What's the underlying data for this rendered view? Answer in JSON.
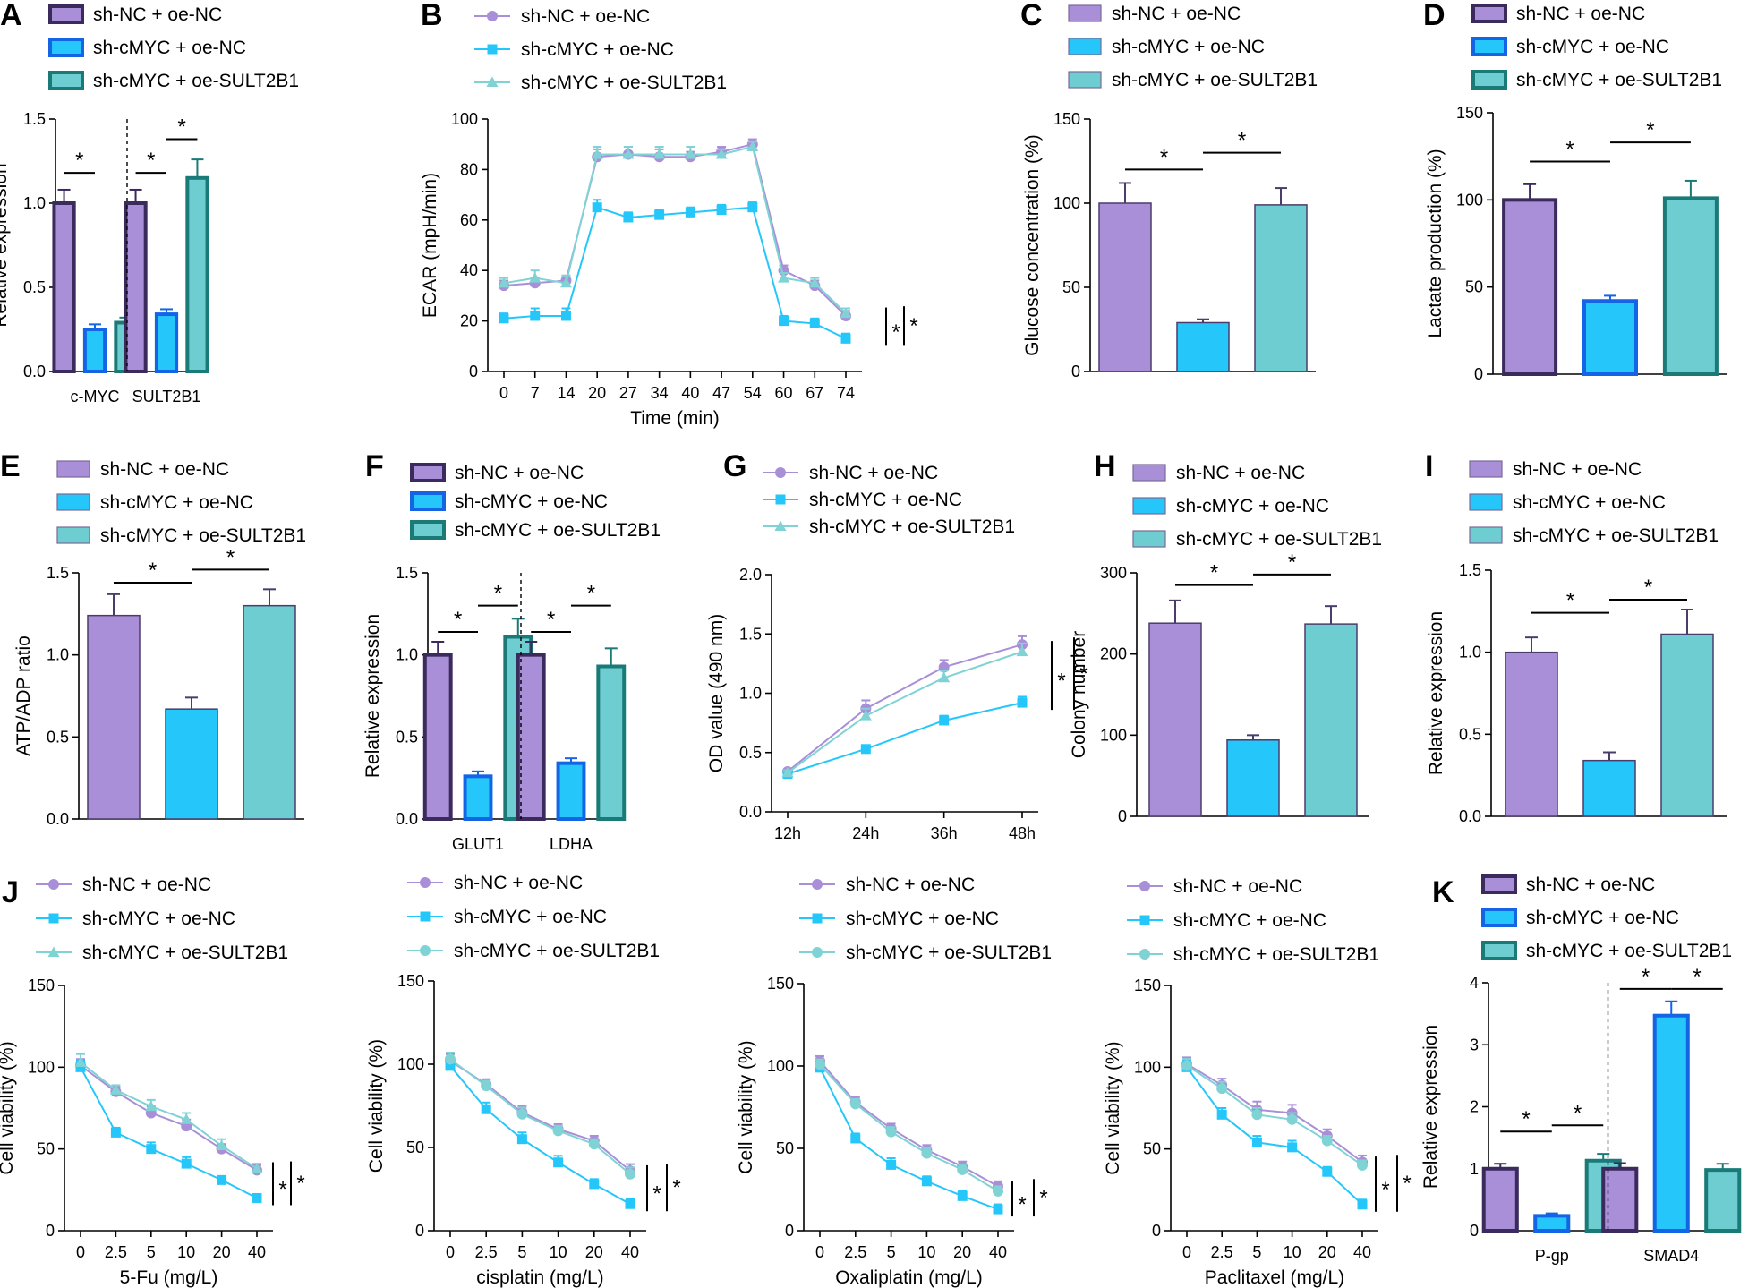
{
  "colors": {
    "purple": "#a98fd8",
    "purple_edge": "#3b2a5c",
    "cyan": "#25c7fb",
    "cyan_edge": "#1464e6",
    "teal": "#6dcdd0",
    "teal_edge": "#1a7a78",
    "line_purple": "#a98fd8",
    "line_cyan": "#25c7fb",
    "line_teal": "#7fd3d4"
  },
  "groups": [
    "sh-NC + oe-NC",
    "sh-cMYC + oe-NC",
    "sh-cMYC + oe-SULT2B1"
  ],
  "chart_data": [
    {
      "id": "A",
      "type": "bar",
      "style": "outlined",
      "letter": "A",
      "categories": [
        "c-MYC",
        "SULT2B1"
      ],
      "ylabel": "Relative expression",
      "ylim": [
        0,
        1.5
      ],
      "yticks": [
        0,
        0.5,
        1.0,
        1.5
      ],
      "divider": true,
      "series": [
        {
          "name": "sh-NC + oe-NC",
          "values": [
            1.0,
            1.0
          ],
          "errors": [
            0.08,
            0.08
          ]
        },
        {
          "name": "sh-cMYC + oe-NC",
          "values": [
            0.25,
            0.34
          ],
          "errors": [
            0.03,
            0.03
          ]
        },
        {
          "name": "sh-cMYC + oe-SULT2B1",
          "values": [
            0.29,
            1.15
          ],
          "errors": [
            0.03,
            0.11
          ]
        }
      ],
      "significance": [
        {
          "cat": 0,
          "a": 0,
          "b": 1,
          "y": 1.18,
          "label": "*"
        },
        {
          "cat": 1,
          "a": 0,
          "b": 1,
          "y": 1.18,
          "label": "*"
        },
        {
          "cat": 1,
          "a": 1,
          "b": 2,
          "y": 1.38,
          "label": "*"
        }
      ]
    },
    {
      "id": "B",
      "type": "line",
      "letter": "B",
      "xlabel": "Time (min)",
      "ylabel": "ECAR (mpH/min)",
      "x": [
        "0",
        "7",
        "14",
        "20",
        "27",
        "34",
        "40",
        "47",
        "54",
        "60",
        "67",
        "74"
      ],
      "ylim": [
        0,
        100
      ],
      "yticks": [
        0,
        20,
        40,
        60,
        80,
        100
      ],
      "markers": [
        "circle",
        "square",
        "triangle"
      ],
      "series": [
        {
          "name": "sh-NC + oe-NC",
          "values": [
            34,
            35,
            36,
            85,
            86,
            85,
            85,
            87,
            90,
            40,
            34,
            22
          ],
          "errors": [
            2,
            2,
            2,
            3,
            3,
            3,
            2,
            2,
            2,
            2,
            2,
            2
          ]
        },
        {
          "name": "sh-cMYC + oe-NC",
          "values": [
            21,
            22,
            22,
            65,
            61,
            62,
            63,
            64,
            65,
            20,
            19,
            13
          ],
          "errors": [
            2,
            3,
            3,
            3,
            2,
            2,
            2,
            2,
            2,
            2,
            2,
            2
          ]
        },
        {
          "name": "sh-cMYC + oe-SULT2B1",
          "values": [
            35,
            37,
            35,
            86,
            86,
            86,
            86,
            86,
            89,
            37,
            35,
            23
          ],
          "errors": [
            2,
            3,
            3,
            3,
            3,
            3,
            3,
            2,
            2,
            2,
            2,
            2
          ]
        }
      ],
      "significance": [
        {
          "label": "*"
        },
        {
          "label": "*"
        }
      ]
    },
    {
      "id": "C",
      "type": "bar",
      "style": "filled",
      "letter": "C",
      "categories": [
        ""
      ],
      "ylabel": "Glucose concentration (%)",
      "ylim": [
        0,
        150
      ],
      "yticks": [
        0,
        50,
        100,
        150
      ],
      "divider": false,
      "series": [
        {
          "name": "sh-NC + oe-NC",
          "values": [
            100
          ],
          "errors": [
            12
          ]
        },
        {
          "name": "sh-cMYC + oe-NC",
          "values": [
            29
          ],
          "errors": [
            2
          ]
        },
        {
          "name": "sh-cMYC + oe-SULT2B1",
          "values": [
            99
          ],
          "errors": [
            10
          ]
        }
      ],
      "significance": [
        {
          "cat": 0,
          "a": 0,
          "b": 1,
          "y": 120,
          "label": "*"
        },
        {
          "cat": 0,
          "a": 1,
          "b": 2,
          "y": 130,
          "label": "*"
        }
      ]
    },
    {
      "id": "D",
      "type": "bar",
      "style": "outlined",
      "letter": "D",
      "categories": [
        ""
      ],
      "ylabel": "Lactate production (%)",
      "ylim": [
        0,
        150
      ],
      "yticks": [
        0,
        50,
        100,
        150
      ],
      "divider": false,
      "series": [
        {
          "name": "sh-NC + oe-NC",
          "values": [
            100
          ],
          "errors": [
            9
          ]
        },
        {
          "name": "sh-cMYC + oe-NC",
          "values": [
            42
          ],
          "errors": [
            3
          ]
        },
        {
          "name": "sh-cMYC + oe-SULT2B1",
          "values": [
            101
          ],
          "errors": [
            10
          ]
        }
      ],
      "significance": [
        {
          "cat": 0,
          "a": 0,
          "b": 1,
          "y": 122,
          "label": "*"
        },
        {
          "cat": 0,
          "a": 1,
          "b": 2,
          "y": 133,
          "label": "*"
        }
      ]
    },
    {
      "id": "E",
      "type": "bar",
      "style": "filled",
      "letter": "E",
      "categories": [
        ""
      ],
      "ylabel": "ATP/ADP ratio",
      "ylim": [
        0,
        1.5
      ],
      "yticks": [
        0,
        0.5,
        1.0,
        1.5
      ],
      "divider": false,
      "series": [
        {
          "name": "sh-NC + oe-NC",
          "values": [
            1.24
          ],
          "errors": [
            0.13
          ]
        },
        {
          "name": "sh-cMYC + oe-NC",
          "values": [
            0.67
          ],
          "errors": [
            0.07
          ]
        },
        {
          "name": "sh-cMYC + oe-SULT2B1",
          "values": [
            1.3
          ],
          "errors": [
            0.1
          ]
        }
      ],
      "significance": [
        {
          "cat": 0,
          "a": 0,
          "b": 1,
          "y": 1.44,
          "label": "*"
        },
        {
          "cat": 0,
          "a": 1,
          "b": 2,
          "y": 1.52,
          "label": "*"
        }
      ]
    },
    {
      "id": "F",
      "type": "bar",
      "style": "outlined",
      "letter": "F",
      "categories": [
        "GLUT1",
        "LDHA"
      ],
      "ylabel": "Relative expression",
      "ylim": [
        0,
        1.5
      ],
      "yticks": [
        0,
        0.5,
        1.0,
        1.5
      ],
      "divider": true,
      "series": [
        {
          "name": "sh-NC + oe-NC",
          "values": [
            1.0,
            1.0
          ],
          "errors": [
            0.08,
            0.08
          ]
        },
        {
          "name": "sh-cMYC + oe-NC",
          "values": [
            0.26,
            0.34
          ],
          "errors": [
            0.03,
            0.03
          ]
        },
        {
          "name": "sh-cMYC + oe-SULT2B1",
          "values": [
            1.11,
            0.93
          ],
          "errors": [
            0.11,
            0.11
          ]
        }
      ],
      "significance": [
        {
          "cat": 0,
          "a": 0,
          "b": 1,
          "y": 1.14,
          "label": "*"
        },
        {
          "cat": 0,
          "a": 1,
          "b": 2,
          "y": 1.3,
          "label": "*"
        },
        {
          "cat": 1,
          "a": 0,
          "b": 1,
          "y": 1.14,
          "label": "*"
        },
        {
          "cat": 1,
          "a": 1,
          "b": 2,
          "y": 1.3,
          "label": "*"
        }
      ]
    },
    {
      "id": "G",
      "type": "line",
      "letter": "G",
      "xlabel": "",
      "ylabel": "OD value (490 nm)",
      "x": [
        "12h",
        "24h",
        "36h",
        "48h"
      ],
      "ylim": [
        0,
        2.0
      ],
      "yticks": [
        0,
        0.5,
        1.0,
        1.5,
        2.0
      ],
      "markers": [
        "circle",
        "square",
        "triangle"
      ],
      "series": [
        {
          "name": "sh-NC + oe-NC",
          "values": [
            0.34,
            0.87,
            1.22,
            1.41
          ],
          "errors": [
            0.02,
            0.07,
            0.06,
            0.07
          ]
        },
        {
          "name": "sh-cMYC + oe-NC",
          "values": [
            0.32,
            0.53,
            0.77,
            0.92
          ],
          "errors": [
            0.02,
            0.03,
            0.04,
            0.05
          ]
        },
        {
          "name": "sh-cMYC + oe-SULT2B1",
          "values": [
            0.33,
            0.81,
            1.13,
            1.35
          ],
          "errors": [
            0.02,
            0.06,
            0.06,
            0.07
          ]
        }
      ],
      "significance": [
        {
          "label": "*"
        },
        {
          "label": "*"
        }
      ]
    },
    {
      "id": "H",
      "type": "bar",
      "style": "filled",
      "letter": "H",
      "categories": [
        ""
      ],
      "ylabel": "Colony number",
      "ylim": [
        0,
        300
      ],
      "yticks": [
        0,
        100,
        200,
        300
      ],
      "divider": false,
      "series": [
        {
          "name": "sh-NC + oe-NC",
          "values": [
            238
          ],
          "errors": [
            28
          ]
        },
        {
          "name": "sh-cMYC + oe-NC",
          "values": [
            94
          ],
          "errors": [
            6
          ]
        },
        {
          "name": "sh-cMYC + oe-SULT2B1",
          "values": [
            237
          ],
          "errors": [
            22
          ]
        }
      ],
      "significance": [
        {
          "cat": 0,
          "a": 0,
          "b": 1,
          "y": 285,
          "label": "*"
        },
        {
          "cat": 0,
          "a": 1,
          "b": 2,
          "y": 298,
          "label": "*"
        }
      ]
    },
    {
      "id": "I",
      "type": "bar",
      "style": "filled",
      "letter": "I",
      "categories": [
        ""
      ],
      "ylabel": "Relative expression",
      "ylim": [
        0,
        1.5
      ],
      "yticks": [
        0,
        0.5,
        1.0,
        1.5
      ],
      "divider": false,
      "series": [
        {
          "name": "sh-NC + oe-NC",
          "values": [
            1.0
          ],
          "errors": [
            0.09
          ]
        },
        {
          "name": "sh-cMYC + oe-NC",
          "values": [
            0.34
          ],
          "errors": [
            0.05
          ]
        },
        {
          "name": "sh-cMYC + oe-SULT2B1",
          "values": [
            1.11
          ],
          "errors": [
            0.15
          ]
        }
      ],
      "significance": [
        {
          "cat": 0,
          "a": 0,
          "b": 1,
          "y": 1.24,
          "label": "*"
        },
        {
          "cat": 0,
          "a": 1,
          "b": 2,
          "y": 1.32,
          "label": "*"
        }
      ]
    },
    {
      "id": "J1",
      "type": "line",
      "letter": "J",
      "xlabel": "5-Fu (mg/L)",
      "ylabel": "Cell viability (%)",
      "x": [
        "0",
        "2.5",
        "5",
        "10",
        "20",
        "40"
      ],
      "ylim": [
        0,
        150
      ],
      "yticks": [
        0,
        50,
        100,
        150
      ],
      "markers": [
        "circle",
        "square",
        "triangle"
      ],
      "series": [
        {
          "name": "sh-NC + oe-NC",
          "values": [
            101,
            85,
            72,
            64,
            50,
            37
          ],
          "errors": [
            4,
            3,
            4,
            4,
            3,
            3
          ]
        },
        {
          "name": "sh-cMYC + oe-NC",
          "values": [
            100,
            60,
            50,
            41,
            31,
            20
          ],
          "errors": [
            4,
            3,
            4,
            4,
            2,
            2
          ]
        },
        {
          "name": "sh-cMYC + oe-SULT2B1",
          "values": [
            103,
            86,
            76,
            68,
            52,
            38
          ],
          "errors": [
            5,
            3,
            4,
            4,
            4,
            3
          ]
        }
      ],
      "significance": [
        {
          "label": "*"
        },
        {
          "label": "*"
        }
      ]
    },
    {
      "id": "J2",
      "type": "line",
      "letter": "",
      "xlabel": "cisplatin (mg/L)",
      "ylabel": "Cell viability (%)",
      "x": [
        "0",
        "2.5",
        "5",
        "10",
        "20",
        "40"
      ],
      "ylim": [
        0,
        150
      ],
      "yticks": [
        0,
        50,
        100,
        150
      ],
      "markers": [
        "circle",
        "square",
        "circle"
      ],
      "series": [
        {
          "name": "sh-NC + oe-NC",
          "values": [
            102,
            88,
            71,
            61,
            54,
            36
          ],
          "errors": [
            4,
            3,
            4,
            3,
            3,
            4
          ]
        },
        {
          "name": "sh-cMYC + oe-NC",
          "values": [
            99,
            73,
            55,
            41,
            28,
            16
          ],
          "errors": [
            4,
            4,
            4,
            4,
            3,
            3
          ]
        },
        {
          "name": "sh-cMYC + oe-SULT2B1",
          "values": [
            103,
            87,
            70,
            60,
            52,
            34
          ],
          "errors": [
            4,
            3,
            4,
            3,
            3,
            4
          ]
        }
      ],
      "significance": [
        {
          "label": "*"
        },
        {
          "label": "*"
        }
      ]
    },
    {
      "id": "J3",
      "type": "line",
      "letter": "",
      "xlabel": "Oxaliplatin (mg/L)",
      "ylabel": "Cell viability (%)",
      "x": [
        "0",
        "2.5",
        "5",
        "10",
        "20",
        "40"
      ],
      "ylim": [
        0,
        150
      ],
      "yticks": [
        0,
        50,
        100,
        150
      ],
      "markers": [
        "circle",
        "square",
        "circle"
      ],
      "series": [
        {
          "name": "sh-NC + oe-NC",
          "values": [
            103,
            78,
            62,
            49,
            39,
            27
          ],
          "errors": [
            3,
            3,
            3,
            3,
            3,
            3
          ]
        },
        {
          "name": "sh-cMYC + oe-NC",
          "values": [
            99,
            56,
            40,
            30,
            21,
            13
          ],
          "errors": [
            4,
            3,
            4,
            3,
            3,
            3
          ]
        },
        {
          "name": "sh-cMYC + oe-SULT2B1",
          "values": [
            101,
            77,
            60,
            47,
            37,
            24
          ],
          "errors": [
            3,
            3,
            3,
            3,
            3,
            3
          ]
        }
      ],
      "significance": [
        {
          "label": "*"
        },
        {
          "label": "*"
        }
      ]
    },
    {
      "id": "J4",
      "type": "line",
      "letter": "",
      "xlabel": "Paclitaxel (mg/L)",
      "ylabel": "Cell viability (%)",
      "x": [
        "0",
        "2.5",
        "5",
        "10",
        "20",
        "40"
      ],
      "ylim": [
        0,
        150
      ],
      "yticks": [
        0,
        50,
        100,
        150
      ],
      "markers": [
        "circle",
        "square",
        "circle"
      ],
      "series": [
        {
          "name": "sh-NC + oe-NC",
          "values": [
            102,
            89,
            74,
            72,
            58,
            42
          ],
          "errors": [
            4,
            4,
            5,
            5,
            4,
            4
          ]
        },
        {
          "name": "sh-cMYC + oe-NC",
          "values": [
            100,
            71,
            54,
            51,
            36,
            16
          ],
          "errors": [
            4,
            4,
            4,
            4,
            3,
            3
          ]
        },
        {
          "name": "sh-cMYC + oe-SULT2B1",
          "values": [
            101,
            87,
            71,
            68,
            55,
            40
          ],
          "errors": [
            4,
            4,
            4,
            4,
            3,
            3
          ]
        }
      ],
      "significance": [
        {
          "label": "*"
        },
        {
          "label": "*"
        }
      ]
    },
    {
      "id": "K",
      "type": "bar",
      "style": "outlined",
      "letter": "K",
      "categories": [
        "P-gp",
        "SMAD4"
      ],
      "ylabel": "Relative expression",
      "ylim": [
        0,
        4
      ],
      "yticks": [
        0,
        1,
        2,
        3,
        4
      ],
      "divider": true,
      "series": [
        {
          "name": "sh-NC + oe-NC",
          "values": [
            1.0,
            1.0
          ],
          "errors": [
            0.08,
            0.09
          ]
        },
        {
          "name": "sh-cMYC + oe-NC",
          "values": [
            0.24,
            3.47
          ],
          "errors": [
            0.04,
            0.23
          ]
        },
        {
          "name": "sh-cMYC + oe-SULT2B1",
          "values": [
            1.13,
            0.98
          ],
          "errors": [
            0.11,
            0.1
          ]
        }
      ],
      "significance": [
        {
          "cat": 0,
          "a": 0,
          "b": 1,
          "y": 1.6,
          "label": "*"
        },
        {
          "cat": 0,
          "a": 1,
          "b": 2,
          "y": 1.7,
          "label": "*"
        },
        {
          "cat": 1,
          "a": 0,
          "b": 1,
          "y": 3.9,
          "label": "*"
        },
        {
          "cat": 1,
          "a": 1,
          "b": 2,
          "y": 3.9,
          "label": "*"
        }
      ]
    }
  ]
}
